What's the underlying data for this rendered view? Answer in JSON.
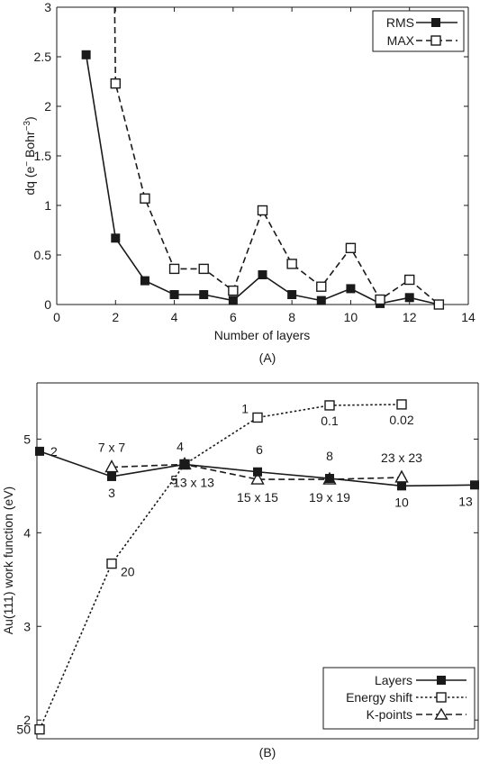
{
  "chart_data": [
    {
      "type": "line",
      "panel_label": "(A)",
      "xlabel": "Number of layers",
      "ylabel": "dq (e− Bohr−3)",
      "xlim": [
        0,
        14
      ],
      "ylim": [
        0,
        3
      ],
      "xticks": [
        0,
        2,
        4,
        6,
        8,
        10,
        12,
        14
      ],
      "yticks": [
        0,
        0.5,
        1,
        1.5,
        2,
        2.5,
        3
      ],
      "grid": false,
      "legend_position": "top-right",
      "series": [
        {
          "name": "RMS",
          "line": "solid",
          "marker": "filled-square",
          "x": [
            1,
            2,
            3,
            4,
            5,
            6,
            7,
            8,
            9,
            10,
            11,
            12,
            13
          ],
          "y": [
            2.52,
            0.67,
            0.24,
            0.1,
            0.1,
            0.04,
            0.3,
            0.1,
            0.04,
            0.16,
            0.01,
            0.07,
            0.0
          ]
        },
        {
          "name": "MAX",
          "line": "dashed",
          "marker": "open-square",
          "x": [
            2,
            3,
            4,
            5,
            6,
            7,
            8,
            9,
            10,
            11,
            12,
            13
          ],
          "y": [
            2.23,
            1.07,
            0.36,
            0.36,
            0.14,
            0.95,
            0.41,
            0.18,
            0.57,
            0.05,
            0.25,
            0.0
          ],
          "enters_from_above_at_x": 1.97
        }
      ]
    },
    {
      "type": "line",
      "panel_label": "(B)",
      "xlabel": "",
      "ylabel": "Au(111) work function (eV)",
      "ylim": [
        1.8,
        5.6
      ],
      "yticks": [
        2,
        3,
        4,
        5
      ],
      "grid": false,
      "legend_position": "bottom-right",
      "series": [
        {
          "name": "Layers",
          "line": "solid",
          "marker": "filled-square",
          "y": [
            4.87,
            4.6,
            4.73,
            4.65,
            4.58,
            4.5,
            4.51
          ],
          "labels": [
            "2",
            "3",
            "4",
            "6",
            "8",
            "10",
            "13"
          ]
        },
        {
          "name": "Energy shift",
          "line": "dotted",
          "marker": "open-square",
          "y": [
            1.9,
            3.67,
            4.73,
            5.23,
            5.36,
            5.37
          ],
          "labels": [
            "50",
            "20",
            "5",
            "1",
            "0.1",
            "0.02"
          ]
        },
        {
          "name": "K-points",
          "line": "dashed",
          "marker": "open-triangle",
          "y": [
            4.7,
            4.73,
            4.57,
            4.57,
            4.59
          ],
          "labels": [
            "7 x 7",
            "13 x 13",
            "15 x 15",
            "19 x 19",
            "23 x 23"
          ]
        }
      ]
    }
  ]
}
